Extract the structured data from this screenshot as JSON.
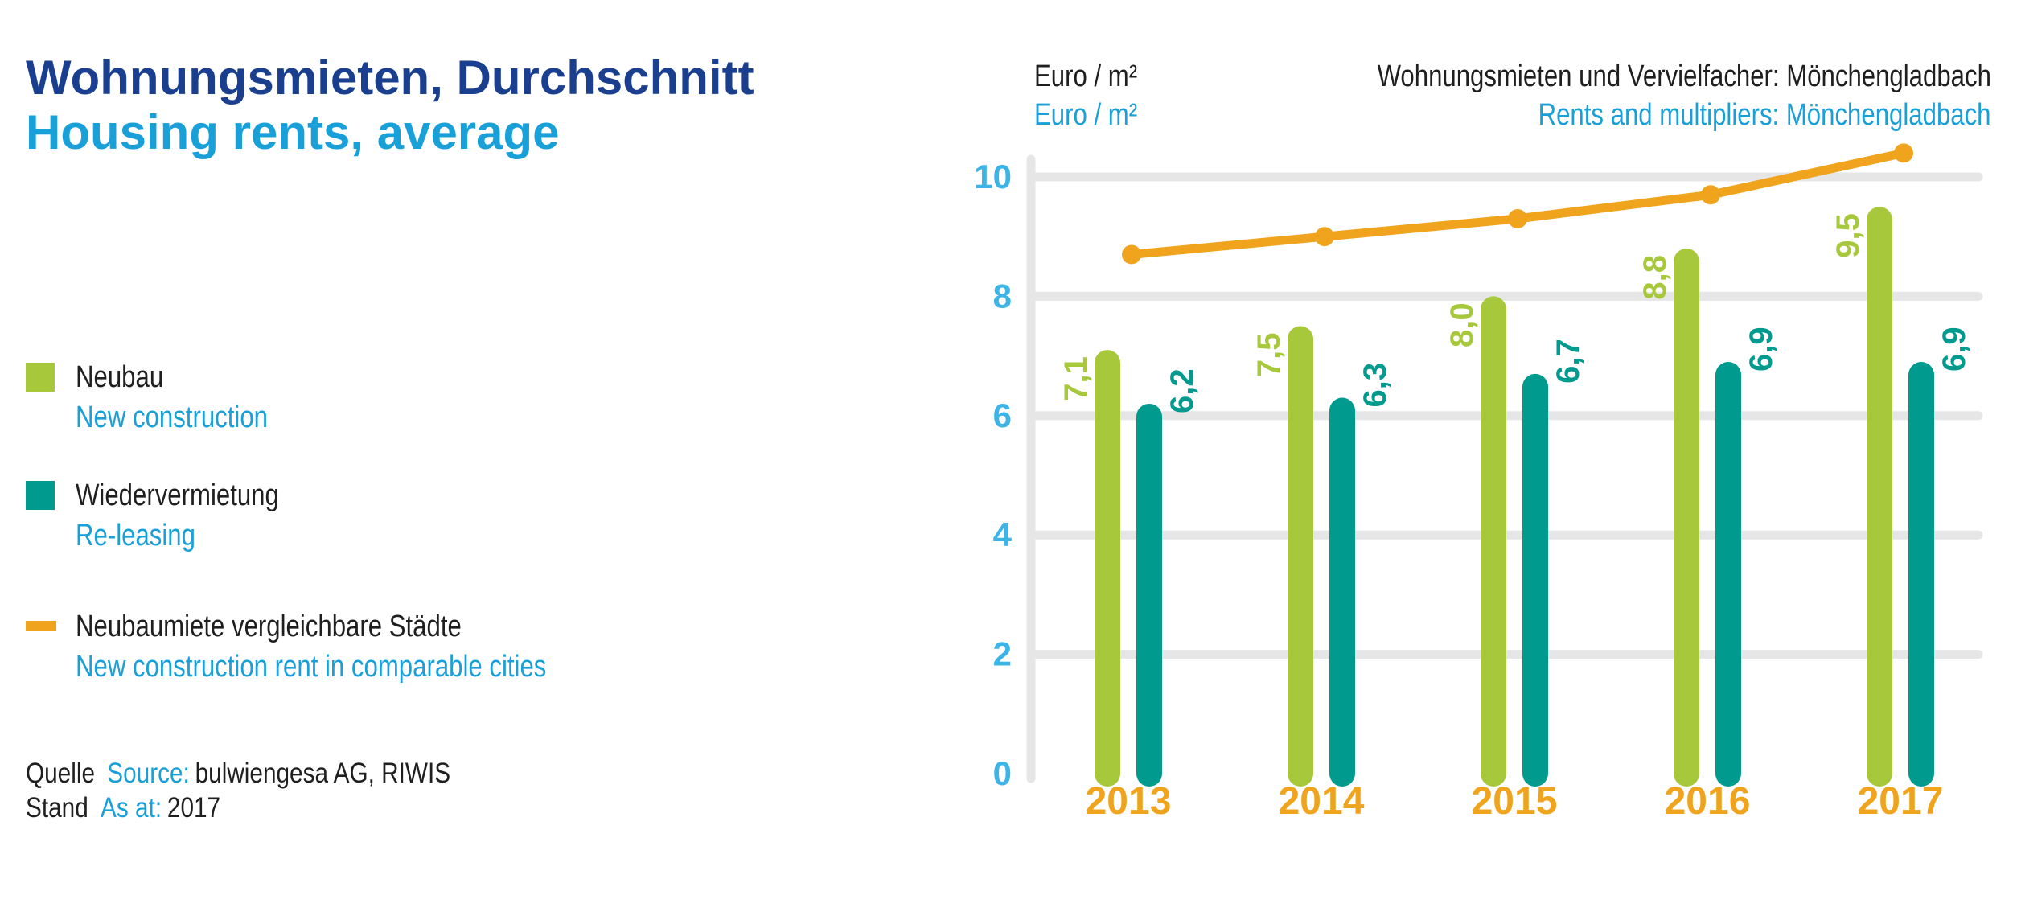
{
  "title": {
    "de": "Wohnungsmieten, Durchschnitt",
    "en": "Housing rents, average"
  },
  "legend": [
    {
      "de": "Neubau",
      "en": "New construction",
      "color": "#a8c83c",
      "shape": "square"
    },
    {
      "de": "Wiedervermietung",
      "en": "Re-leasing",
      "color": "#009a8e",
      "shape": "square"
    },
    {
      "de": "Neubaumiete vergleichbare Städte",
      "en": "New construction rent in comparable cities",
      "color": "#f0a41e",
      "shape": "line"
    }
  ],
  "source": {
    "label_de": "Quelle",
    "label_en": "Source:",
    "value": "bulwiengesa AG, RIWIS",
    "asat_de": "Stand",
    "asat_en": "As at:",
    "asat_value": "2017"
  },
  "unit": {
    "de": "Euro / m²",
    "en": "Euro / m²"
  },
  "chart_title": {
    "de": "Wohnungsmieten und Vervielfacher: Mönchengladbach",
    "en": "Rents and multipliers: Mönchengladbach"
  },
  "chart_data": {
    "type": "bar",
    "categories": [
      "2013",
      "2014",
      "2015",
      "2016",
      "2017"
    ],
    "series": [
      {
        "name": "Neubau",
        "type": "bar",
        "color": "#a8c83c",
        "values": [
          7.1,
          7.5,
          8.0,
          8.8,
          9.5
        ],
        "labels": [
          "7,1",
          "7,5",
          "8,0",
          "8,8",
          "9,5"
        ]
      },
      {
        "name": "Wiedervermietung",
        "type": "bar",
        "color": "#009a8e",
        "values": [
          6.2,
          6.3,
          6.7,
          6.9,
          6.9
        ],
        "labels": [
          "6,2",
          "6,3",
          "6,7",
          "6,9",
          "6,9"
        ]
      },
      {
        "name": "Neubaumiete vergleichbare Städte",
        "type": "line",
        "color": "#f0a41e",
        "values": [
          8.7,
          9.0,
          9.3,
          9.7,
          10.4
        ]
      }
    ],
    "ylim": [
      0,
      10
    ],
    "yticks": [
      "0",
      "2",
      "4",
      "6",
      "8",
      "10"
    ],
    "ytick_values": [
      0,
      2,
      4,
      6,
      8,
      10
    ],
    "grid": true,
    "axis_color": "#e6e6e6",
    "ytick_color": "#3cb4e6",
    "xtick_color": "#f0a41e"
  }
}
